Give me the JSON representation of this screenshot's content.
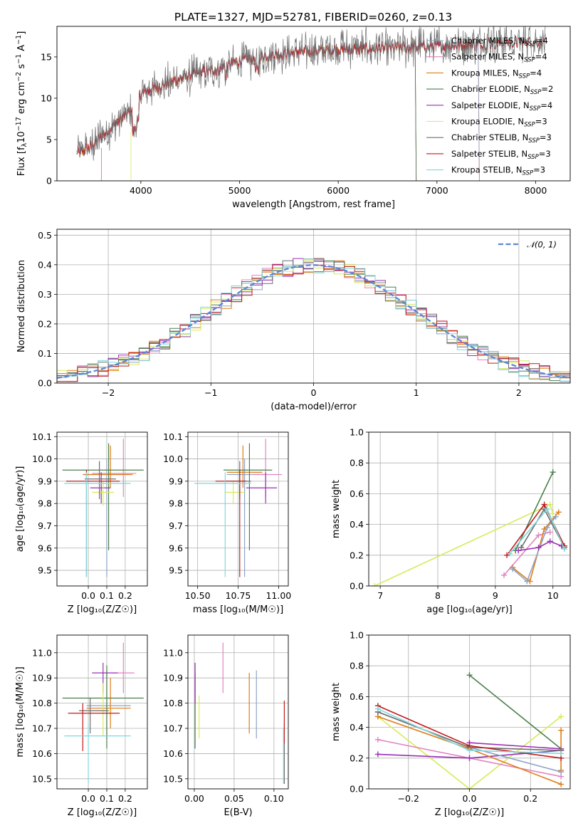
{
  "title": "PLATE=1327, MJD=52781, FIBERID=0260, z=0.13",
  "colors": {
    "chabrier_miles": "#8EA3C6",
    "salpeter_miles": "#E184C1",
    "kroupa_miles": "#E07B14",
    "chabrier_elodie": "#4A7F4A",
    "salpeter_elodie": "#9A2FB5",
    "kroupa_elodie": "#D8EA5A",
    "chabrier_stelib": "#6E6E6E",
    "salpeter_stelib": "#C21A1A",
    "kroupa_stelib": "#7ED8DE",
    "normal_curve": "#5B86D6",
    "grid": "#b0b0b0"
  },
  "legend_top": [
    {
      "key": "chabrier_miles",
      "label": "Chabrier MILES, N",
      "sub": "SSP",
      "suffix": "=4"
    },
    {
      "key": "salpeter_miles",
      "label": "Salpeter MILES, N",
      "sub": "SSP",
      "suffix": "=4"
    },
    {
      "key": "kroupa_miles",
      "label": "Kroupa MILES, N",
      "sub": "SSP",
      "suffix": "=4"
    },
    {
      "key": "chabrier_elodie",
      "label": "Chabrier ELODIE, N",
      "sub": "SSP",
      "suffix": "=2"
    },
    {
      "key": "salpeter_elodie",
      "label": "Salpeter ELODIE, N",
      "sub": "SSP",
      "suffix": "=4"
    },
    {
      "key": "kroupa_elodie",
      "label": "Kroupa ELODIE, N",
      "sub": "SSP",
      "suffix": "=3"
    },
    {
      "key": "chabrier_stelib",
      "label": "Chabrier STELIB, N",
      "sub": "SSP",
      "suffix": "=3"
    },
    {
      "key": "salpeter_stelib",
      "label": "Salpeter STELIB, N",
      "sub": "SSP",
      "suffix": "=3"
    },
    {
      "key": "kroupa_stelib",
      "label": "Kroupa STELIB, N",
      "sub": "SSP",
      "suffix": "=3"
    }
  ],
  "chart_data": [
    {
      "id": "spectrum",
      "type": "line",
      "xlabel": "wavelength [Angstrom, rest frame]",
      "ylabel": "Flux [f",
      "ylabel_sub": "λ",
      "ylabel_rest": "10",
      "ylabel_exp": "−17",
      "ylabel_tail": " erg cm",
      "ylabel_exp2": "−2",
      "ylabel_tail2": " s",
      "ylabel_exp3": "−1",
      "ylabel_tail3": " A",
      "ylabel_exp4": "−1",
      "ylabel_end": "]",
      "xlim": [
        3150,
        8350
      ],
      "ylim": [
        0,
        18.7
      ],
      "xticks": [
        4000,
        5000,
        6000,
        7000,
        8000
      ],
      "yticks": [
        0,
        5,
        10,
        15
      ],
      "continuum": {
        "x": [
          3350,
          3500,
          3700,
          3900,
          4000,
          4200,
          4500,
          4800,
          5000,
          5300,
          5600,
          6000,
          6300,
          6600,
          7000,
          7300,
          7600,
          8000,
          8100
        ],
        "y": [
          3.2,
          4.2,
          6.5,
          8.5,
          10.5,
          11.5,
          12.8,
          13.6,
          14.5,
          15.2,
          15.6,
          15.9,
          16.0,
          16.1,
          16.3,
          16.5,
          16.7,
          16.9,
          17.0
        ]
      }
    },
    {
      "id": "residuals",
      "type": "histogram",
      "xlabel": "(data-model)/error",
      "ylabel": "Normed distribution",
      "xlim": [
        -2.5,
        2.5
      ],
      "ylim": [
        0,
        0.52
      ],
      "xticks": [
        -2,
        -1,
        0,
        1,
        2
      ],
      "xtick_labels": [
        "−2",
        "−1",
        "0",
        "1",
        "2"
      ],
      "yticks": [
        0.0,
        0.1,
        0.2,
        0.3,
        0.4,
        0.5
      ],
      "ytick_labels": [
        "0.0",
        "0.1",
        "0.2",
        "0.3",
        "0.4",
        "0.5"
      ],
      "legend": "𝒩(0, 1)",
      "bin_width": 0.1
    },
    {
      "id": "age_vs_Z",
      "type": "errorbar",
      "xlabel": "Z [log₁₀(Z/Z☉)]",
      "ylabel": "age  [log₁₀(age/yr)]",
      "xlim": [
        -0.17,
        0.32
      ],
      "ylim": [
        9.43,
        10.12
      ],
      "xticks": [
        0.0,
        0.1,
        0.2
      ],
      "xtick_labels": [
        "0.0",
        "0.1",
        "0.2"
      ],
      "yticks": [
        9.5,
        9.6,
        9.7,
        9.8,
        9.9,
        10.0,
        10.1
      ],
      "ytick_labels": [
        "9.5",
        "9.6",
        "9.7",
        "9.8",
        "9.9",
        "10.0",
        "10.1"
      ],
      "points": [
        {
          "key": "chabrier_miles",
          "x": 0.1,
          "xlo": -0.02,
          "xhi": 0.22,
          "y": 9.93,
          "ylo": 9.47,
          "yhi": 10.0
        },
        {
          "key": "salpeter_miles",
          "x": 0.19,
          "xlo": 0.02,
          "xhi": 0.26,
          "y": 9.935,
          "ylo": 9.83,
          "yhi": 10.09
        },
        {
          "key": "kroupa_miles",
          "x": 0.12,
          "xlo": -0.03,
          "xhi": 0.24,
          "y": 9.93,
          "ylo": 9.87,
          "yhi": 10.06
        },
        {
          "key": "chabrier_elodie",
          "x": 0.11,
          "xlo": -0.14,
          "xhi": 0.3,
          "y": 9.95,
          "ylo": 9.59,
          "yhi": 10.07
        },
        {
          "key": "salpeter_elodie",
          "x": 0.07,
          "xlo": 0.01,
          "xhi": 0.12,
          "y": 9.87,
          "ylo": 9.8,
          "yhi": 9.94
        },
        {
          "key": "kroupa_elodie",
          "x": 0.08,
          "xlo": 0.02,
          "xhi": 0.14,
          "y": 9.85,
          "ylo": 9.79,
          "yhi": 9.9
        },
        {
          "key": "chabrier_stelib",
          "x": 0.06,
          "xlo": -0.02,
          "xhi": 0.15,
          "y": 9.91,
          "ylo": 9.82,
          "yhi": 9.99
        },
        {
          "key": "salpeter_stelib",
          "x": -0.01,
          "xlo": -0.12,
          "xhi": 0.17,
          "y": 9.9,
          "ylo": 9.47,
          "yhi": 9.95
        },
        {
          "key": "kroupa_stelib",
          "x": -0.01,
          "xlo": -0.13,
          "xhi": 0.23,
          "y": 9.89,
          "ylo": 9.47,
          "yhi": 9.94
        }
      ]
    },
    {
      "id": "age_vs_mass",
      "type": "errorbar",
      "xlabel": "mass [log₁₀(M/M☉)]",
      "xlim": [
        10.44,
        11.06
      ],
      "ylim": [
        9.43,
        10.12
      ],
      "xticks": [
        10.5,
        10.75,
        11.0
      ],
      "xtick_labels": [
        "10.50",
        "10.75",
        "11.00"
      ],
      "yticks": [
        9.5,
        9.6,
        9.7,
        9.8,
        9.9,
        10.0,
        10.1
      ],
      "ytick_labels": [
        "9.5",
        "9.6",
        "9.7",
        "9.8",
        "9.9",
        "10.0",
        "10.1"
      ],
      "points": [
        {
          "key": "chabrier_miles",
          "x": 10.79,
          "xlo": 10.68,
          "xhi": 10.92,
          "y": 9.93,
          "ylo": 9.47,
          "yhi": 10.0
        },
        {
          "key": "salpeter_miles",
          "x": 10.92,
          "xlo": 10.84,
          "xhi": 11.02,
          "y": 9.93,
          "ylo": 9.83,
          "yhi": 10.09
        },
        {
          "key": "kroupa_miles",
          "x": 10.78,
          "xlo": 10.68,
          "xhi": 10.9,
          "y": 9.94,
          "ylo": 9.87,
          "yhi": 10.06
        },
        {
          "key": "chabrier_elodie",
          "x": 10.82,
          "xlo": 10.66,
          "xhi": 10.96,
          "y": 9.95,
          "ylo": 9.59,
          "yhi": 10.07
        },
        {
          "key": "salpeter_elodie",
          "x": 10.92,
          "xlo": 10.8,
          "xhi": 10.99,
          "y": 9.87,
          "ylo": 9.8,
          "yhi": 9.94
        },
        {
          "key": "kroupa_elodie",
          "x": 10.72,
          "xlo": 10.67,
          "xhi": 10.79,
          "y": 9.85,
          "ylo": 9.8,
          "yhi": 9.9
        },
        {
          "key": "chabrier_stelib",
          "x": 10.76,
          "xlo": 10.67,
          "xhi": 10.83,
          "y": 9.9,
          "ylo": 9.82,
          "yhi": 9.99
        },
        {
          "key": "salpeter_stelib",
          "x": 10.76,
          "xlo": 10.61,
          "xhi": 10.8,
          "y": 9.9,
          "ylo": 9.47,
          "yhi": 9.95
        },
        {
          "key": "kroupa_stelib",
          "x": 10.67,
          "xlo": 10.48,
          "xhi": 10.83,
          "y": 9.89,
          "ylo": 9.47,
          "yhi": 9.94
        }
      ]
    },
    {
      "id": "weight_vs_age",
      "type": "line",
      "xlabel": "age  [log₁₀(age/yr)]",
      "ylabel": "mass weight",
      "xlim": [
        6.8,
        10.3
      ],
      "ylim": [
        0,
        1.0
      ],
      "xticks": [
        7,
        8,
        9,
        10
      ],
      "xtick_labels": [
        "7",
        "8",
        "9",
        "10"
      ],
      "yticks": [
        0,
        0.2,
        0.4,
        0.6,
        0.8,
        1.0
      ],
      "ytick_labels": [
        "0.0",
        "0.2",
        "0.4",
        "0.6",
        "0.8",
        "1.0"
      ],
      "series": [
        {
          "key": "kroupa_elodie",
          "x": [
            6.9,
            9.95,
            10.0
          ],
          "y": [
            0.0,
            0.53,
            0.47
          ]
        },
        {
          "key": "salpeter_miles",
          "x": [
            9.15,
            9.75,
            9.95
          ],
          "y": [
            0.07,
            0.33,
            0.35
          ]
        },
        {
          "key": "kroupa_miles",
          "x": [
            9.3,
            9.6,
            9.85,
            10.1
          ],
          "y": [
            0.12,
            0.03,
            0.37,
            0.48
          ]
        },
        {
          "key": "chabrier_miles",
          "x": [
            9.3,
            9.55,
            9.9,
            10.05
          ],
          "y": [
            0.11,
            0.03,
            0.38,
            0.45
          ]
        },
        {
          "key": "chabrier_elodie",
          "x": [
            9.35,
            10.0
          ],
          "y": [
            0.23,
            0.74
          ]
        },
        {
          "key": "salpeter_elodie",
          "x": [
            9.4,
            9.75,
            9.95,
            10.15
          ],
          "y": [
            0.23,
            0.25,
            0.29,
            0.26
          ]
        },
        {
          "key": "chabrier_stelib",
          "x": [
            9.45,
            9.85,
            10.2
          ],
          "y": [
            0.25,
            0.5,
            0.25
          ]
        },
        {
          "key": "salpeter_stelib",
          "x": [
            9.2,
            9.85,
            10.2
          ],
          "y": [
            0.2,
            0.53,
            0.26
          ]
        },
        {
          "key": "kroupa_stelib",
          "x": [
            9.25,
            9.9,
            10.2
          ],
          "y": [
            0.21,
            0.5,
            0.24
          ]
        }
      ]
    },
    {
      "id": "mass_vs_Z",
      "type": "errorbar",
      "xlabel": "Z [log₁₀(Z/Z☉)]",
      "ylabel": "mass [log₁₀(M/M☉)]",
      "xlim": [
        -0.17,
        0.32
      ],
      "ylim": [
        10.46,
        11.07
      ],
      "xticks": [
        0.0,
        0.1,
        0.2
      ],
      "xtick_labels": [
        "0.0",
        "0.1",
        "0.2"
      ],
      "yticks": [
        10.5,
        10.6,
        10.7,
        10.8,
        10.9,
        11.0
      ],
      "ytick_labels": [
        "10.5",
        "10.6",
        "10.7",
        "10.8",
        "10.9",
        "11.0"
      ],
      "points": [
        {
          "key": "chabrier_miles",
          "x": 0.1,
          "xlo": -0.01,
          "xhi": 0.23,
          "y": 10.79,
          "ylo": 10.66,
          "yhi": 10.93
        },
        {
          "key": "salpeter_miles",
          "x": 0.19,
          "xlo": 0.13,
          "xhi": 0.25,
          "y": 10.92,
          "ylo": 10.84,
          "yhi": 11.04
        },
        {
          "key": "kroupa_miles",
          "x": 0.12,
          "xlo": -0.01,
          "xhi": 0.23,
          "y": 10.78,
          "ylo": 10.7,
          "yhi": 10.9
        },
        {
          "key": "chabrier_elodie",
          "x": 0.1,
          "xlo": -0.14,
          "xhi": 0.3,
          "y": 10.82,
          "ylo": 10.62,
          "yhi": 10.95
        },
        {
          "key": "salpeter_elodie",
          "x": 0.08,
          "xlo": 0.02,
          "xhi": 0.16,
          "y": 10.92,
          "ylo": 10.84,
          "yhi": 10.96
        },
        {
          "key": "kroupa_elodie",
          "x": 0.08,
          "xlo": 0.04,
          "xhi": 0.13,
          "y": 10.77,
          "ylo": 10.67,
          "yhi": 10.88
        },
        {
          "key": "chabrier_stelib",
          "x": 0.01,
          "xlo": -0.05,
          "xhi": 0.11,
          "y": 10.77,
          "ylo": 10.68,
          "yhi": 10.82
        },
        {
          "key": "salpeter_stelib",
          "x": -0.03,
          "xlo": -0.11,
          "xhi": 0.17,
          "y": 10.76,
          "ylo": 10.61,
          "yhi": 10.8
        },
        {
          "key": "kroupa_stelib",
          "x": 0.0,
          "xlo": -0.13,
          "xhi": 0.23,
          "y": 10.67,
          "ylo": 10.48,
          "yhi": 10.72
        }
      ]
    },
    {
      "id": "mass_vs_ebv",
      "type": "errorbar",
      "xlabel": "E(B-V)",
      "xlim": [
        -0.008,
        0.118
      ],
      "ylim": [
        10.46,
        11.07
      ],
      "xticks": [
        0.0,
        0.05,
        0.1
      ],
      "xtick_labels": [
        "0.00",
        "0.05",
        "0.10"
      ],
      "yticks": [
        10.5,
        10.6,
        10.7,
        10.8,
        10.9,
        11.0
      ],
      "ytick_labels": [
        "10.5",
        "10.6",
        "10.7",
        "10.8",
        "10.9",
        "11.0"
      ],
      "points": [
        {
          "key": "chabrier_miles",
          "x": 0.078,
          "y": 10.8,
          "ylo": 10.66,
          "yhi": 10.93
        },
        {
          "key": "salpeter_miles",
          "x": 0.036,
          "y": 10.94,
          "ylo": 10.84,
          "yhi": 11.04
        },
        {
          "key": "kroupa_miles",
          "x": 0.069,
          "y": 10.8,
          "ylo": 10.68,
          "yhi": 10.92
        },
        {
          "key": "chabrier_elodie",
          "x": 0.001,
          "y": 10.78,
          "ylo": 10.62,
          "yhi": 10.92
        },
        {
          "key": "salpeter_elodie",
          "x": 0.001,
          "y": 10.88,
          "ylo": 10.8,
          "yhi": 10.96
        },
        {
          "key": "kroupa_elodie",
          "x": 0.006,
          "y": 10.74,
          "ylo": 10.66,
          "yhi": 10.83
        },
        {
          "key": "chabrier_stelib",
          "x": 0.113,
          "y": 10.6,
          "ylo": 10.48,
          "yhi": 10.72
        },
        {
          "key": "salpeter_stelib",
          "x": 0.113,
          "y": 10.72,
          "ylo": 10.64,
          "yhi": 10.81
        },
        {
          "key": "kroupa_stelib",
          "x": 0.112,
          "y": 10.59,
          "ylo": 10.48,
          "yhi": 10.7
        }
      ]
    },
    {
      "id": "weight_vs_Z",
      "type": "line",
      "xlabel": "Z [log₁₀(Z/Z☉)]",
      "ylabel": "mass weight",
      "xlim": [
        -0.33,
        0.33
      ],
      "ylim": [
        0,
        1.0
      ],
      "xticks": [
        -0.2,
        0.0,
        0.2
      ],
      "xtick_labels": [
        "−0.2",
        "0.0",
        "0.2"
      ],
      "yticks": [
        0,
        0.2,
        0.4,
        0.6,
        0.8,
        1.0
      ],
      "ytick_labels": [
        "0.0",
        "0.2",
        "0.4",
        "0.6",
        "0.8",
        "1.0"
      ],
      "series": [
        {
          "key": "kroupa_elodie",
          "x": [
            -0.3,
            0.0,
            0.3
          ],
          "y": [
            0.47,
            0.0,
            0.47
          ]
        },
        {
          "key": "chabrier_elodie",
          "x": [
            0.0,
            0.3
          ],
          "y": [
            0.74,
            0.26
          ]
        },
        {
          "key": "salpeter_miles",
          "x": [
            -0.3,
            0.0,
            0.3
          ],
          "y": [
            0.32,
            0.2,
            0.08
          ]
        },
        {
          "key": "salpeter_elodie",
          "x": [
            -0.3,
            0.0,
            0.3
          ],
          "y": [
            0.225,
            0.2,
            0.25
          ]
        },
        {
          "key": "salpeter_elodie",
          "x": [
            0.0,
            0.3
          ],
          "y": [
            0.3,
            0.26
          ]
        },
        {
          "key": "kroupa_miles",
          "x": [
            -0.3,
            0.0,
            0.3
          ],
          "y": [
            0.47,
            0.26,
            0.03
          ]
        },
        {
          "key": "kroupa_miles",
          "x": [
            0.3,
            0.3
          ],
          "y": [
            0.38,
            0.12
          ]
        },
        {
          "key": "chabrier_miles",
          "x": [
            -0.3,
            0.0,
            0.3
          ],
          "y": [
            0.5,
            0.27,
            0.11
          ]
        },
        {
          "key": "chabrier_stelib",
          "x": [
            -0.3,
            0.0,
            0.3
          ],
          "y": [
            0.5,
            0.27,
            0.25
          ]
        },
        {
          "key": "salpeter_stelib",
          "x": [
            -0.3,
            0.0,
            0.3
          ],
          "y": [
            0.54,
            0.28,
            0.2
          ]
        },
        {
          "key": "kroupa_stelib",
          "x": [
            -0.3,
            0.0,
            0.3
          ],
          "y": [
            0.52,
            0.25,
            0.23
          ]
        }
      ]
    }
  ]
}
